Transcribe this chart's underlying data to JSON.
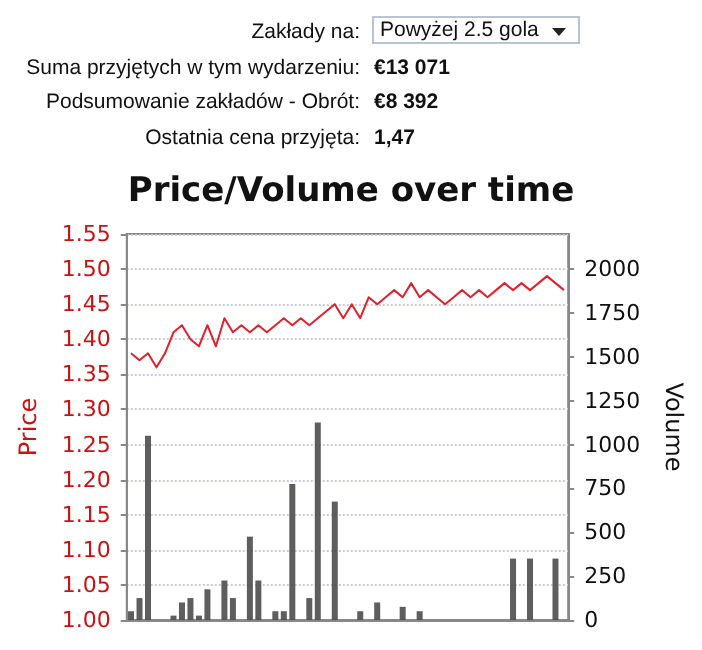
{
  "chart_data": {
    "type": "line",
    "title": "Price/Volume over time",
    "ylabel": "Price",
    "y2label": "Volume",
    "annotations": [
      "Zakłady na:",
      "Powyżej 2.5 gola",
      "Suma przyjętych w tym wydarzeniu:",
      "€13 071",
      "Podsumowanie zakładów - Obrót:",
      "€8 392",
      "Ostatnia cena przyjęta:",
      "1,47"
    ],
    "categories": [
      null,
      null,
      null,
      null,
      null,
      null,
      null,
      null,
      null,
      null,
      null,
      null,
      null,
      null,
      null,
      null,
      null,
      null,
      null,
      null,
      null,
      null,
      null,
      null,
      null,
      null,
      null,
      null,
      null,
      null,
      null,
      null,
      null,
      null,
      null,
      null,
      null,
      null,
      null,
      null,
      null,
      null,
      null,
      null,
      null,
      null,
      null,
      null,
      null,
      null,
      null,
      null
    ],
    "series": [
      {
        "type": "bar",
        "axis": "y2",
        "color": "#4d4d4d",
        "values": [
          50,
          125,
          1050,
          null,
          null,
          25,
          100,
          125,
          25,
          175,
          null,
          225,
          125,
          null,
          475,
          225,
          null,
          50,
          50,
          775,
          null,
          125,
          1125,
          null,
          675,
          null,
          null,
          50,
          null,
          100,
          null,
          null,
          75,
          null,
          50,
          null,
          null,
          null,
          null,
          null,
          null,
          null,
          null,
          null,
          null,
          350,
          null,
          350,
          null,
          null,
          350,
          null
        ]
      },
      {
        "color": "#e0202a",
        "values": [
          1.38,
          1.37,
          1.38,
          1.36,
          1.38,
          1.41,
          1.42,
          1.4,
          1.39,
          1.42,
          1.39,
          1.43,
          1.41,
          1.42,
          1.41,
          1.42,
          1.41,
          1.42,
          1.43,
          1.42,
          1.43,
          1.42,
          1.43,
          1.44,
          1.45,
          1.43,
          1.45,
          1.43,
          1.46,
          1.45,
          1.46,
          1.47,
          1.46,
          1.48,
          1.46,
          1.47,
          1.46,
          1.45,
          1.46,
          1.47,
          1.46,
          1.47,
          1.46,
          1.47,
          1.48,
          1.47,
          1.48,
          1.47,
          1.48,
          1.49,
          1.48,
          1.47
        ]
      }
    ],
    "ylim": [
      1.0,
      1.55
    ],
    "yticks": [
      {
        "value": 1.0,
        "label": "1.00"
      },
      {
        "value": 1.05,
        "label": "1.05"
      },
      {
        "value": 1.1,
        "label": "1.10"
      },
      {
        "value": 1.15,
        "label": "1.15"
      },
      {
        "value": 1.2,
        "label": "1.20"
      },
      {
        "value": 1.25,
        "label": "1.25"
      },
      {
        "value": 1.3,
        "label": "1.30"
      },
      {
        "value": 1.35,
        "label": "1.35"
      },
      {
        "value": 1.4,
        "label": "1.40"
      },
      {
        "value": 1.45,
        "label": "1.45"
      },
      {
        "value": 1.5,
        "label": "1.50"
      },
      {
        "value": 1.55,
        "label": "1.55"
      }
    ],
    "y2lim": [
      0,
      2200
    ],
    "y2ticks": [
      0,
      250,
      500,
      750,
      1000,
      1250,
      1500,
      1750,
      2000
    ],
    "grid": "y",
    "marker": "none",
    "line_style": "solid"
  }
}
